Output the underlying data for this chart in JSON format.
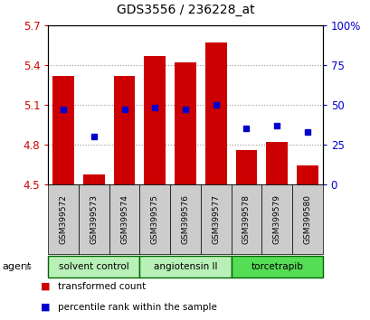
{
  "title": "GDS3556 / 236228_at",
  "samples": [
    "GSM399572",
    "GSM399573",
    "GSM399574",
    "GSM399575",
    "GSM399576",
    "GSM399577",
    "GSM399578",
    "GSM399579",
    "GSM399580"
  ],
  "bar_values": [
    5.32,
    4.57,
    5.32,
    5.47,
    5.42,
    5.57,
    4.76,
    4.82,
    4.64
  ],
  "percentile_values": [
    47,
    30,
    47,
    48,
    47,
    50,
    35,
    37,
    33
  ],
  "ylim_left": [
    4.5,
    5.7
  ],
  "ylim_right": [
    0,
    100
  ],
  "yticks_left": [
    4.5,
    4.8,
    5.1,
    5.4,
    5.7
  ],
  "ytick_labels_left": [
    "4.5",
    "4.8",
    "5.1",
    "5.4",
    "5.7"
  ],
  "yticks_right": [
    0,
    25,
    50,
    75,
    100
  ],
  "ytick_labels_right": [
    "0",
    "25",
    "50",
    "75",
    "100%"
  ],
  "bar_color": "#cc0000",
  "bar_bottom": 4.5,
  "dot_color": "#0000cc",
  "groups": [
    {
      "label": "solvent control",
      "indices": [
        0,
        1,
        2
      ],
      "color": "#b8f0b8"
    },
    {
      "label": "angiotensin II",
      "indices": [
        3,
        4,
        5
      ],
      "color": "#b8f0b8"
    },
    {
      "label": "torcetrapib",
      "indices": [
        6,
        7,
        8
      ],
      "color": "#55dd55"
    }
  ],
  "group_sep_color": "#006600",
  "tick_bg_color": "#cccccc",
  "agent_label": "agent",
  "legend_red_label": "transformed count",
  "legend_blue_label": "percentile rank within the sample",
  "grid_color": "#888888",
  "left_label_color": "#cc0000",
  "right_label_color": "#0000cc",
  "bar_width": 0.7
}
